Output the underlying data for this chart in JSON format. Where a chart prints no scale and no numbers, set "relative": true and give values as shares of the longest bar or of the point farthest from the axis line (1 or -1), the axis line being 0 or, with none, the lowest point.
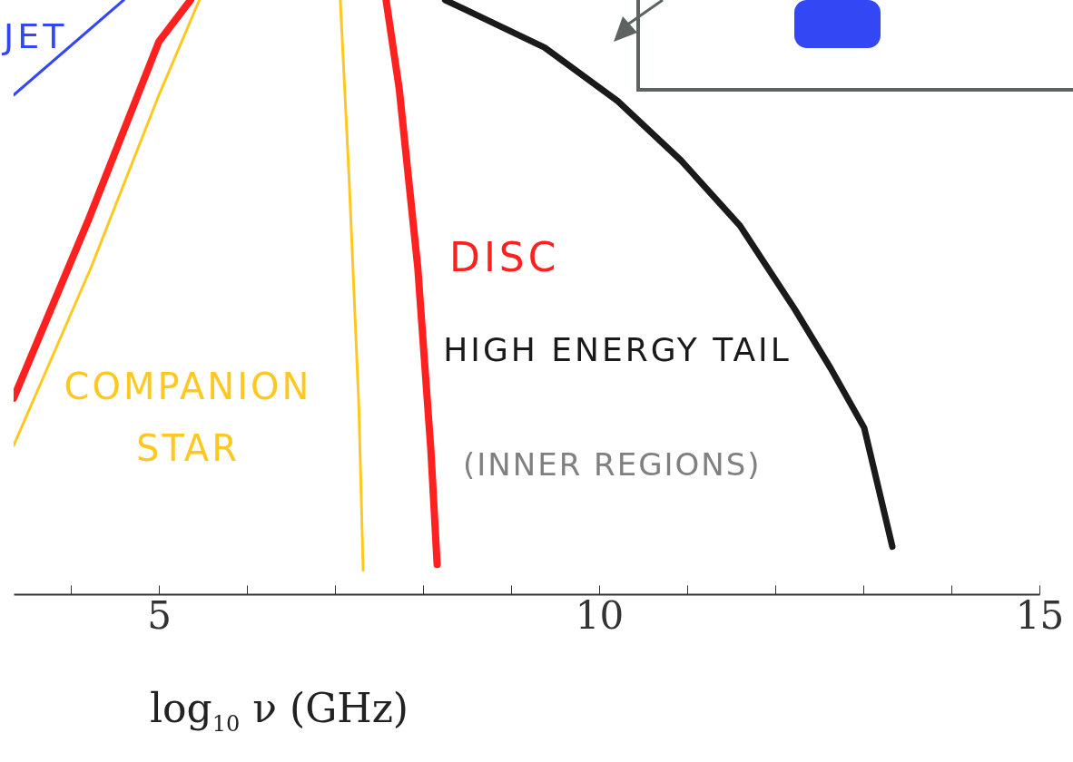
{
  "chart_data": {
    "type": "line",
    "relative": true,
    "xlabel": "log$_{10}$ ν (GHz)",
    "xlim": [
      3.35,
      15
    ],
    "xticks": [
      {
        "value": 4,
        "label": null
      },
      5,
      {
        "value": 6,
        "label": null
      },
      {
        "value": 7,
        "label": null
      },
      {
        "value": 8,
        "label": null
      },
      {
        "value": 9,
        "label": null
      },
      10,
      {
        "value": 11,
        "label": null
      },
      {
        "value": 12,
        "label": null
      },
      {
        "value": 13,
        "label": null
      },
      {
        "value": 14,
        "label": null
      },
      15
    ],
    "series": [
      {
        "name": "JET",
        "color": "#3347f5",
        "x": [
          3.35,
          4.6
        ],
        "values": [
          0.84,
          1.0
        ]
      },
      {
        "name": "DISC",
        "color": "#ff2020",
        "x": [
          3.35,
          4.2,
          5.0,
          5.36,
          6.5,
          7.58,
          7.73,
          7.94,
          8.09,
          8.16
        ],
        "values": [
          0.33,
          0.63,
          0.93,
          1.0,
          null,
          1.0,
          0.85,
          0.55,
          0.24,
          0.05
        ]
      },
      {
        "name": "COMPANION STAR",
        "color": "#ffc820",
        "x": [
          3.35,
          4.23,
          5.0,
          5.46,
          6.3,
          7.06,
          7.16,
          7.27,
          7.32
        ],
        "values": [
          0.25,
          0.55,
          0.84,
          1.0,
          null,
          1.0,
          0.7,
          0.32,
          0.04
        ]
      },
      {
        "name": "HIGH ENERGY TAIL",
        "color": "#1a1a1a",
        "x": [
          8.25,
          9.38,
          10.21,
          10.93,
          11.6,
          12.22,
          12.63,
          13.01,
          13.33
        ],
        "values": [
          1.0,
          0.92,
          0.83,
          0.73,
          0.62,
          0.48,
          0.38,
          0.28,
          0.08
        ]
      }
    ],
    "annotations": [
      "(INNER REGIONS)"
    ],
    "legend": false,
    "grid": false,
    "marker": "none"
  }
}
